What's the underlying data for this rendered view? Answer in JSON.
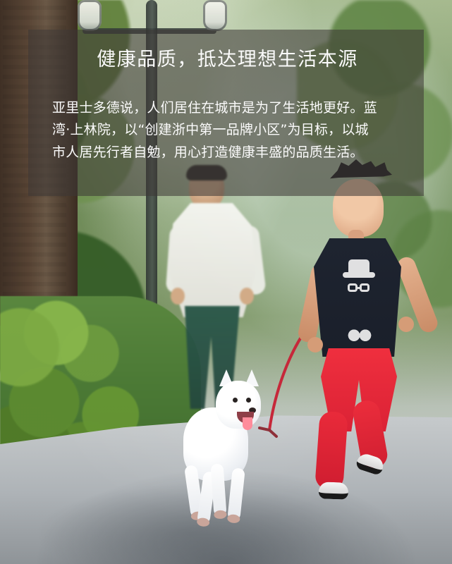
{
  "overlay": {
    "headline": "健康品质，抵达理想生活本源",
    "paragraph_lines": [
      "亚里士多德说，人们居住在城市是为了生活地更好。蓝",
      "湾·上林院，以“创建浙中第一品牌小区”为目标，以城",
      "市人居先行者自勉，用心打造健康丰盛的品质生活。"
    ]
  },
  "palette": {
    "overlay_bg": "#3C3835",
    "text": "#FBFBFB",
    "shirt_red": "#E92A3A",
    "leash_red": "#C6283A"
  }
}
